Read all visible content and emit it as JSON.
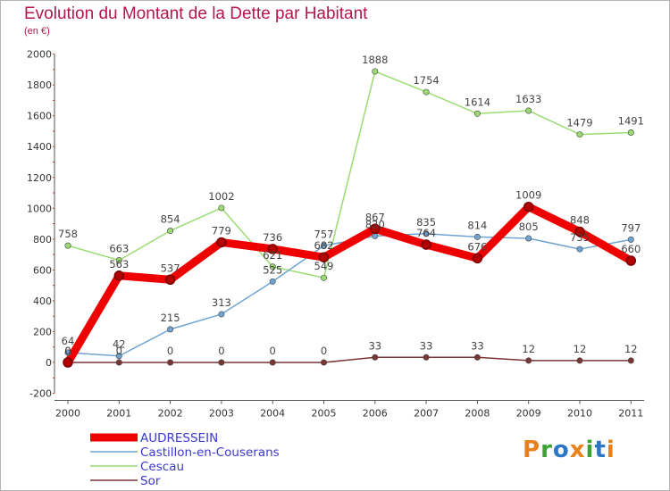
{
  "header": {
    "title": "Evolution du Montant de la Dette par Habitant",
    "unit": "(en €)"
  },
  "logo": {
    "text": "Proxiti",
    "letters": [
      {
        "ch": "P",
        "color": "#e8811d"
      },
      {
        "ch": "r",
        "color": "#3fa135"
      },
      {
        "ch": "o",
        "color": "#2b77c5"
      },
      {
        "ch": "x",
        "color": "#e8811d"
      },
      {
        "ch": "i",
        "color": "#3fa135"
      },
      {
        "ch": "t",
        "color": "#2b77c5"
      },
      {
        "ch": "i",
        "color": "#e8811d"
      }
    ]
  },
  "chart_data": {
    "type": "line",
    "title": "Evolution du Montant de la Dette par Habitant",
    "ylabel": "(en €)",
    "xlabel": "",
    "x": [
      "2000",
      "2001",
      "2002",
      "2003",
      "2004",
      "2005",
      "2006",
      "2007",
      "2008",
      "2009",
      "2010",
      "2011"
    ],
    "ylim": [
      -200,
      2000
    ],
    "yticks": [
      -200,
      0,
      200,
      400,
      600,
      800,
      1000,
      1200,
      1400,
      1600,
      1800,
      2000
    ],
    "grid": false,
    "legend_position": "bottom-left",
    "series": [
      {
        "name": "AUDRESSEIN",
        "color": "#ee0000",
        "values": [
          0,
          563,
          537,
          779,
          736,
          682,
          867,
          764,
          676,
          1009,
          848,
          660
        ]
      },
      {
        "name": "Castillon-en-Couserans",
        "color": "#6fa3d1",
        "values": [
          64,
          42,
          215,
          313,
          525,
          757,
          820,
          835,
          814,
          805,
          735,
          797
        ]
      },
      {
        "name": "Cescau",
        "color": "#9bdc72",
        "values": [
          758,
          663,
          854,
          1002,
          621,
          549,
          1888,
          1754,
          1614,
          1633,
          1479,
          1491
        ]
      },
      {
        "name": "Sor",
        "color": "#7a3535",
        "values": [
          0,
          0,
          0,
          0,
          0,
          0,
          33,
          33,
          33,
          12,
          12,
          12
        ]
      }
    ]
  }
}
